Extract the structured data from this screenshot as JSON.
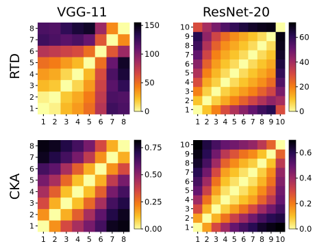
{
  "figure": {
    "column_titles": [
      "VGG-11",
      "ResNet-20"
    ],
    "row_labels": [
      "RTD",
      "CKA"
    ]
  },
  "colormap": {
    "name": "inferno_r",
    "stops": [
      "#fcffa4",
      "#fac228",
      "#f57d15",
      "#d44842",
      "#9f2a63",
      "#65156e",
      "#280b53",
      "#000004"
    ]
  },
  "chart_data": [
    {
      "type": "heatmap",
      "title": "VGG-11",
      "row_label": "RTD",
      "x_ticks": [
        "1",
        "2",
        "3",
        "4",
        "5",
        "6",
        "7",
        "8"
      ],
      "y_ticks": [
        "1",
        "2",
        "3",
        "4",
        "5",
        "6",
        "7",
        "8"
      ],
      "y_order": "bottom-to-top",
      "values": [
        [
          0,
          5,
          25,
          35,
          50,
          80,
          125,
          120
        ],
        [
          5,
          0,
          20,
          30,
          45,
          75,
          120,
          118
        ],
        [
          25,
          20,
          0,
          15,
          35,
          70,
          115,
          130
        ],
        [
          35,
          30,
          15,
          0,
          25,
          65,
          120,
          140
        ],
        [
          50,
          45,
          35,
          25,
          0,
          50,
          110,
          145
        ],
        [
          80,
          75,
          70,
          65,
          50,
          0,
          60,
          90
        ],
        [
          125,
          120,
          115,
          120,
          110,
          60,
          0,
          40
        ],
        [
          120,
          118,
          130,
          140,
          145,
          90,
          40,
          0
        ]
      ],
      "colorbar": {
        "min": 0,
        "max": 155,
        "ticks": [
          0,
          50,
          100,
          150
        ]
      }
    },
    {
      "type": "heatmap",
      "title": "ResNet-20",
      "row_label": "RTD",
      "x_ticks": [
        "1",
        "2",
        "3",
        "4",
        "5",
        "6",
        "7",
        "8",
        "9",
        "10"
      ],
      "y_ticks": [
        "1",
        "2",
        "3",
        "4",
        "5",
        "6",
        "7",
        "8",
        "9",
        "10"
      ],
      "y_order": "bottom-to-top",
      "values": [
        [
          0,
          10,
          20,
          30,
          38,
          45,
          52,
          58,
          62,
          30
        ],
        [
          10,
          0,
          8,
          14,
          20,
          26,
          32,
          38,
          44,
          40
        ],
        [
          20,
          8,
          0,
          8,
          12,
          16,
          20,
          26,
          32,
          48
        ],
        [
          30,
          14,
          8,
          0,
          6,
          10,
          14,
          18,
          24,
          55
        ],
        [
          38,
          20,
          12,
          6,
          0,
          6,
          10,
          14,
          18,
          60
        ],
        [
          45,
          26,
          16,
          10,
          6,
          0,
          6,
          10,
          14,
          64
        ],
        [
          52,
          32,
          20,
          14,
          10,
          6,
          0,
          6,
          10,
          67
        ],
        [
          58,
          38,
          26,
          18,
          14,
          10,
          6,
          0,
          6,
          69
        ],
        [
          62,
          44,
          32,
          24,
          18,
          14,
          10,
          6,
          0,
          70
        ],
        [
          30,
          40,
          48,
          55,
          60,
          64,
          67,
          69,
          70,
          0
        ]
      ],
      "colorbar": {
        "min": 0,
        "max": 72,
        "ticks": [
          0,
          20,
          40,
          60
        ]
      }
    },
    {
      "type": "heatmap",
      "title": "",
      "row_label": "CKA",
      "x_ticks": [
        "1",
        "2",
        "3",
        "4",
        "5",
        "6",
        "7",
        "8"
      ],
      "y_ticks": [
        "1",
        "2",
        "3",
        "4",
        "5",
        "6",
        "7",
        "8"
      ],
      "y_order": "bottom-to-top",
      "values": [
        [
          0,
          0.2,
          0.35,
          0.45,
          0.55,
          0.65,
          0.78,
          0.8
        ],
        [
          0.2,
          0,
          0.15,
          0.3,
          0.45,
          0.6,
          0.72,
          0.78
        ],
        [
          0.35,
          0.15,
          0,
          0.12,
          0.28,
          0.45,
          0.65,
          0.72
        ],
        [
          0.45,
          0.3,
          0.12,
          0,
          0.12,
          0.3,
          0.55,
          0.65
        ],
        [
          0.55,
          0.45,
          0.28,
          0.12,
          0,
          0.15,
          0.4,
          0.55
        ],
        [
          0.65,
          0.6,
          0.45,
          0.3,
          0.15,
          0,
          0.2,
          0.35
        ],
        [
          0.78,
          0.72,
          0.65,
          0.55,
          0.4,
          0.2,
          0,
          0.15
        ],
        [
          0.8,
          0.78,
          0.72,
          0.65,
          0.55,
          0.35,
          0.15,
          0
        ]
      ],
      "colorbar": {
        "min": 0,
        "max": 0.82,
        "ticks": [
          "0.00",
          "0.25",
          "0.50",
          "0.75"
        ]
      }
    },
    {
      "type": "heatmap",
      "title": "",
      "row_label": "CKA",
      "x_ticks": [
        "1",
        "2",
        "3",
        "4",
        "5",
        "6",
        "7",
        "8",
        "9",
        "10"
      ],
      "y_ticks": [
        "1",
        "2",
        "3",
        "4",
        "5",
        "6",
        "7",
        "8",
        "9",
        "10"
      ],
      "y_order": "bottom-to-top",
      "values": [
        [
          0,
          0.15,
          0.3,
          0.4,
          0.5,
          0.55,
          0.6,
          0.65,
          0.68,
          0.7
        ],
        [
          0.15,
          0,
          0.12,
          0.22,
          0.32,
          0.4,
          0.48,
          0.55,
          0.6,
          0.62
        ],
        [
          0.3,
          0.12,
          0,
          0.08,
          0.15,
          0.22,
          0.3,
          0.4,
          0.48,
          0.55
        ],
        [
          0.4,
          0.22,
          0.08,
          0,
          0.05,
          0.1,
          0.15,
          0.25,
          0.35,
          0.5
        ],
        [
          0.5,
          0.32,
          0.15,
          0.05,
          0,
          0.05,
          0.1,
          0.18,
          0.28,
          0.48
        ],
        [
          0.55,
          0.4,
          0.22,
          0.1,
          0.05,
          0,
          0.05,
          0.12,
          0.22,
          0.45
        ],
        [
          0.6,
          0.48,
          0.3,
          0.15,
          0.1,
          0.05,
          0,
          0.08,
          0.18,
          0.42
        ],
        [
          0.65,
          0.55,
          0.4,
          0.25,
          0.18,
          0.12,
          0.08,
          0,
          0.1,
          0.35
        ],
        [
          0.68,
          0.6,
          0.48,
          0.35,
          0.28,
          0.22,
          0.18,
          0.1,
          0,
          0.25
        ],
        [
          0.7,
          0.62,
          0.55,
          0.5,
          0.48,
          0.45,
          0.42,
          0.35,
          0.25,
          0
        ]
      ],
      "colorbar": {
        "min": 0,
        "max": 0.7,
        "ticks": [
          "0.0",
          "0.2",
          "0.4",
          "0.6"
        ]
      }
    }
  ]
}
